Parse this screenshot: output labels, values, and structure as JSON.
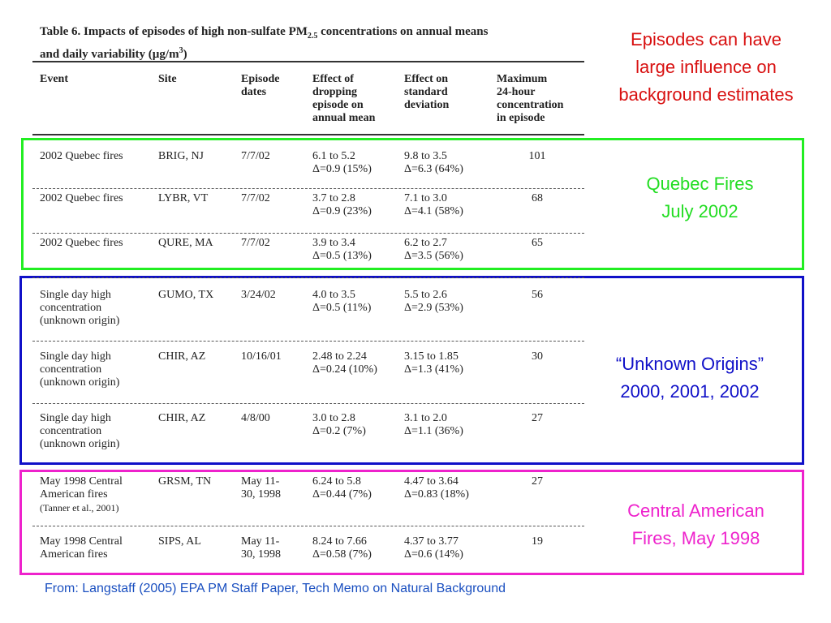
{
  "title": [
    "Table 6.  Impacts of episodes of high non-sulfate PM",
    "2.5",
    " concentrations on annual means",
    "and daily variability (µg/m",
    "3",
    ")"
  ],
  "table": {
    "header": [
      [
        "Event"
      ],
      [
        "Site"
      ],
      [
        "Episode",
        "dates"
      ],
      [
        "Effect of",
        "dropping",
        "episode on",
        "annual mean"
      ],
      [
        "Effect on",
        "standard",
        "deviation"
      ],
      [
        "Maximum",
        "24-hour",
        "concentration",
        "in episode"
      ]
    ],
    "rows": [
      [
        [
          "2002 Quebec fires"
        ],
        [
          "BRIG, NJ"
        ],
        [
          "7/7/02"
        ],
        [
          "6.1 to 5.2",
          "Δ=0.9 (15%)"
        ],
        [
          "9.8 to 3.5",
          "Δ=6.3 (64%)"
        ],
        [
          "101"
        ]
      ],
      [
        [
          "2002 Quebec fires"
        ],
        [
          "LYBR, VT"
        ],
        [
          "7/7/02"
        ],
        [
          "3.7 to 2.8",
          "Δ=0.9 (23%)"
        ],
        [
          "7.1 to 3.0",
          "Δ=4.1 (58%)"
        ],
        [
          "68"
        ]
      ],
      [
        [
          "2002 Quebec fires"
        ],
        [
          "QURE, MA"
        ],
        [
          "7/7/02"
        ],
        [
          "3.9 to 3.4",
          "Δ=0.5 (13%)"
        ],
        [
          "6.2 to 2.7",
          "Δ=3.5 (56%)"
        ],
        [
          "65"
        ]
      ],
      [
        [
          "Single day high",
          "concentration",
          "(unknown origin)"
        ],
        [
          "GUMO, TX"
        ],
        [
          "3/24/02"
        ],
        [
          "4.0 to 3.5",
          "Δ=0.5 (11%)"
        ],
        [
          "5.5 to 2.6",
          "Δ=2.9 (53%)"
        ],
        [
          "56"
        ]
      ],
      [
        [
          "Single day high",
          "concentration",
          "(unknown origin)"
        ],
        [
          "CHIR, AZ"
        ],
        [
          "10/16/01"
        ],
        [
          "2.48 to 2.24",
          "Δ=0.24 (10%)"
        ],
        [
          "3.15 to 1.85",
          "Δ=1.3 (41%)"
        ],
        [
          "30"
        ]
      ],
      [
        [
          "Single day high",
          "concentration",
          "(unknown origin)"
        ],
        [
          "CHIR, AZ"
        ],
        [
          "4/8/00"
        ],
        [
          "3.0 to 2.8",
          "Δ=0.2 (7%)"
        ],
        [
          "3.1 to 2.0",
          "Δ=1.1 (36%)"
        ],
        [
          "27"
        ]
      ],
      [
        [
          "May 1998 Central",
          "American fires",
          "(Tanner et al., 2001)"
        ],
        [
          "GRSM, TN"
        ],
        [
          "May 11-",
          "30, 1998"
        ],
        [
          "6.24 to 5.8",
          "Δ=0.44 (7%)"
        ],
        [
          "4.47 to 3.64",
          "Δ=0.83 (18%)"
        ],
        [
          "27"
        ]
      ],
      [
        [
          "May 1998 Central",
          "American fires"
        ],
        [
          "SIPS, AL"
        ],
        [
          "May 11-",
          "30, 1998"
        ],
        [
          "8.24 to 7.66",
          "Δ=0.58 (7%)"
        ],
        [
          "4.37 to 3.77",
          "Δ=0.6 (14%)"
        ],
        [
          "19"
        ]
      ]
    ]
  },
  "annotations": {
    "headline": [
      "Episodes can have",
      "large influence on",
      "background estimates"
    ],
    "quebec": [
      "Quebec Fires",
      "July 2002"
    ],
    "unknown": [
      "“Unknown Origins”",
      "2000, 2001, 2002"
    ],
    "central": [
      "Central American",
      "Fires, May 1998"
    ]
  },
  "source": "From: Langstaff (2005) EPA PM Staff Paper, Tech Memo on Natural Background"
}
